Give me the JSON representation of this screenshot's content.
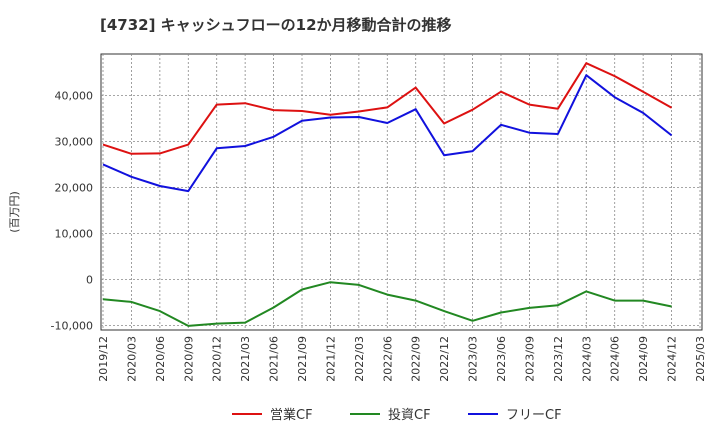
{
  "chart_data": {
    "type": "line",
    "title": "[4732]  キャッシュフローの12か月移動合計の推移",
    "ylabel": "(百万円)",
    "xlabel": "",
    "ylim": [
      -11000,
      49000
    ],
    "yticks": [
      -10000,
      0,
      10000,
      20000,
      30000,
      40000
    ],
    "ytick_labels": [
      "-10,000",
      "0",
      "10,000",
      "20,000",
      "30,000",
      "40,000"
    ],
    "categories": [
      "2019/12",
      "2020/03",
      "2020/06",
      "2020/09",
      "2020/12",
      "2021/03",
      "2021/06",
      "2021/09",
      "2021/12",
      "2022/03",
      "2022/06",
      "2022/09",
      "2022/12",
      "2023/03",
      "2023/06",
      "2023/09",
      "2023/12",
      "2024/03",
      "2024/06",
      "2024/09",
      "2024/12",
      "2025/03"
    ],
    "series": [
      {
        "name": "営業CF",
        "color": "#dd1111",
        "values": [
          29300,
          27300,
          27400,
          29300,
          38000,
          38300,
          36800,
          36600,
          35800,
          36500,
          37400,
          41700,
          33900,
          36900,
          40800,
          38000,
          37100,
          47000,
          44200,
          40800,
          37300,
          null
        ]
      },
      {
        "name": "投資CF",
        "color": "#228822",
        "values": [
          -4300,
          -4900,
          -6900,
          -10100,
          -9600,
          -9400,
          -6100,
          -2200,
          -600,
          -1200,
          -3300,
          -4600,
          -6900,
          -9000,
          -7200,
          -6200,
          -5600,
          -2600,
          -4600,
          -4600,
          -5900,
          null
        ]
      },
      {
        "name": "フリーCF",
        "color": "#1111dd",
        "values": [
          25000,
          22300,
          20300,
          19200,
          28500,
          29000,
          31000,
          34500,
          35200,
          35300,
          34000,
          37000,
          27000,
          27900,
          33600,
          31900,
          31600,
          44400,
          39600,
          36200,
          31300,
          null
        ]
      }
    ],
    "legend_position": "bottom-center"
  }
}
